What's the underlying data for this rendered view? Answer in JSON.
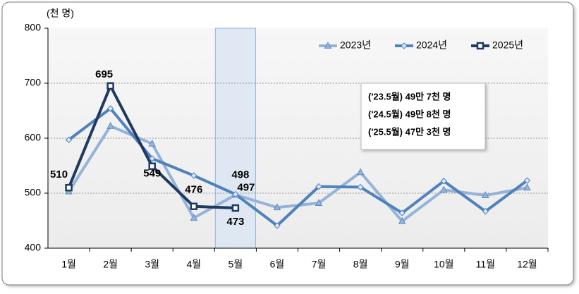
{
  "chart_data": {
    "type": "line",
    "y_label": "(천 명)",
    "categories": [
      "1월",
      "2월",
      "3월",
      "4월",
      "5월",
      "6월",
      "7월",
      "8월",
      "9월",
      "10월",
      "11월",
      "12월"
    ],
    "series": [
      {
        "name": "2023년",
        "color": "#95b3d7",
        "marker": "triangle",
        "values": [
          503,
          622,
          590,
          455,
          497,
          474,
          482,
          538,
          449,
          506,
          496,
          510
        ]
      },
      {
        "name": "2024년",
        "color": "#4f81bd",
        "marker": "diamond",
        "values": [
          597,
          654,
          563,
          532,
          498,
          441,
          512,
          511,
          464,
          522,
          467,
          523
        ]
      },
      {
        "name": "2025년",
        "color": "#1f3a5f",
        "marker": "square",
        "values": [
          510,
          695,
          549,
          476,
          473,
          null,
          null,
          null,
          null,
          null,
          null,
          null
        ]
      }
    ],
    "ylim": [
      400,
      800
    ],
    "yticks": [
      400,
      500,
      600,
      700,
      800
    ],
    "grid": true,
    "legend": "top-right",
    "annotations": [
      "('23.5월) 49만 7천 명",
      "('24.5월) 49만 8천 명",
      "('25.5월) 47만 3천 명"
    ]
  }
}
